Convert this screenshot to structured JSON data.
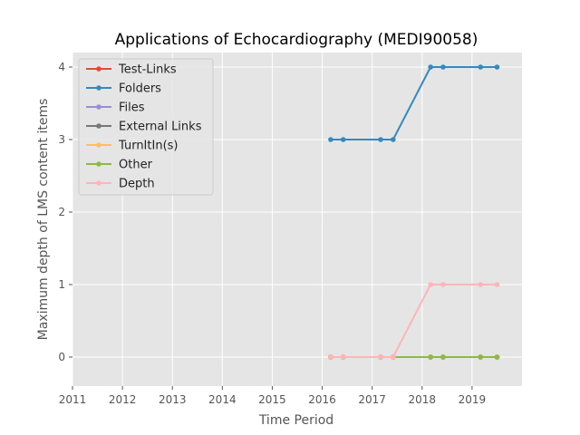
{
  "chart_data": {
    "type": "line",
    "title": "Applications of Echocardiography (MEDI90058)",
    "xlabel": "Time Period",
    "ylabel": "Maximum depth of LMS content items",
    "xlim": [
      2011,
      2020
    ],
    "ylim": [
      -0.4,
      4.2
    ],
    "xticks": [
      "2011",
      "2012",
      "2013",
      "2014",
      "2015",
      "2016",
      "2017",
      "2018",
      "2019"
    ],
    "yticks": [
      "0",
      "1",
      "2",
      "3",
      "4"
    ],
    "grid": true,
    "legend_position": "upper-left",
    "x": [
      2016.17,
      2016.42,
      2017.17,
      2017.42,
      2018.17,
      2018.42,
      2019.17,
      2019.5
    ],
    "series": [
      {
        "name": "Test-Links",
        "color": "#E24A33",
        "values": [
          0,
          0,
          0,
          0,
          0,
          0,
          0,
          0
        ]
      },
      {
        "name": "Folders",
        "color": "#348ABD",
        "values": [
          3,
          3,
          3,
          3,
          4,
          4,
          4,
          4
        ]
      },
      {
        "name": "Files",
        "color": "#988ED5",
        "values": [
          0,
          0,
          0,
          0,
          0,
          0,
          0,
          0
        ]
      },
      {
        "name": "External Links",
        "color": "#777777",
        "values": [
          0,
          0,
          0,
          0,
          0,
          0,
          0,
          0
        ]
      },
      {
        "name": "TurnItIn(s)",
        "color": "#FBC15E",
        "values": [
          0,
          0,
          0,
          0,
          0,
          0,
          0,
          0
        ]
      },
      {
        "name": "Other",
        "color": "#8EBA42",
        "values": [
          0,
          0,
          0,
          0,
          0,
          0,
          0,
          0
        ]
      },
      {
        "name": "Depth",
        "color": "#FFB5B8",
        "values": [
          0,
          0,
          0,
          0,
          1,
          1,
          1,
          1
        ]
      }
    ]
  }
}
